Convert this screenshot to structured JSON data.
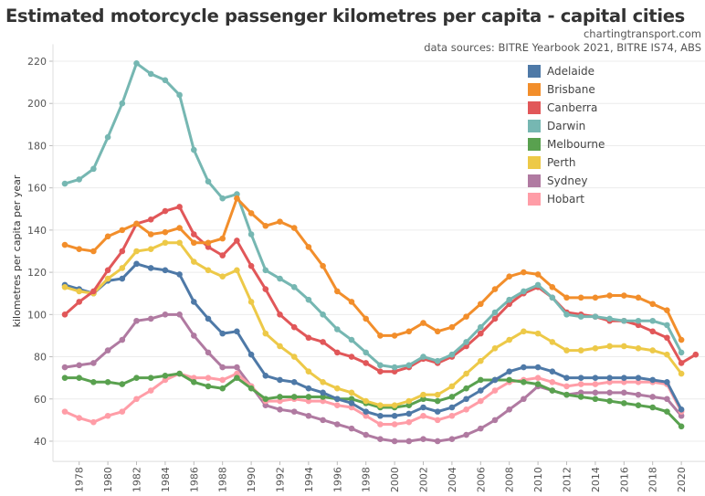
{
  "chart_data": {
    "type": "line",
    "title": "Estimated motorcycle passenger kilometres per capita - capital cities",
    "source_site": "chartingtransport.com",
    "source_note": "data sources: BITRE Yearbook 2021, BITRE IS74, ABS",
    "xlabel": "",
    "ylabel": "kilometres per capita per year",
    "ylim": [
      33,
      228
    ],
    "yticks": [
      40,
      60,
      80,
      100,
      120,
      140,
      160,
      180,
      200,
      220
    ],
    "xticks": [
      1978,
      1980,
      1982,
      1984,
      1986,
      1988,
      1990,
      1992,
      1994,
      1996,
      1998,
      2000,
      2002,
      2004,
      2006,
      2008,
      2010,
      2012,
      2014,
      2016,
      2018,
      2020
    ],
    "grid": true,
    "legend_position": "top-right",
    "x_start": 1977,
    "series": [
      {
        "name": "Adelaide",
        "color": "#4e79a7",
        "values": [
          114,
          112,
          110,
          116,
          117,
          124,
          122,
          121,
          119,
          106,
          98,
          91,
          92,
          81,
          71,
          69,
          68,
          65,
          63,
          60,
          58,
          54,
          52,
          52,
          53,
          56,
          54,
          56,
          60,
          64,
          69,
          73,
          75,
          75,
          73,
          70,
          70,
          70,
          70,
          70,
          70,
          69,
          68,
          55
        ]
      },
      {
        "name": "Brisbane",
        "color": "#f28e2b",
        "values": [
          133,
          131,
          130,
          137,
          140,
          143,
          138,
          139,
          141,
          134,
          134,
          136,
          155,
          148,
          142,
          144,
          141,
          132,
          123,
          111,
          106,
          98,
          90,
          90,
          92,
          96,
          92,
          94,
          99,
          105,
          112,
          118,
          120,
          119,
          113,
          108,
          108,
          108,
          109,
          109,
          108,
          105,
          102,
          88
        ]
      },
      {
        "name": "Canberra",
        "color": "#e15759",
        "values": [
          100,
          106,
          111,
          121,
          130,
          143,
          145,
          149,
          151,
          138,
          132,
          128,
          135,
          123,
          112,
          100,
          94,
          89,
          87,
          82,
          80,
          77,
          73,
          73,
          75,
          79,
          77,
          80,
          85,
          91,
          98,
          105,
          110,
          113,
          108,
          101,
          100,
          99,
          97,
          97,
          95,
          92,
          89,
          77,
          81
        ]
      },
      {
        "name": "Darwin",
        "color": "#76b7b2",
        "values": [
          162,
          164,
          169,
          184,
          200,
          219,
          214,
          211,
          204,
          178,
          163,
          155,
          157,
          138,
          121,
          117,
          113,
          107,
          100,
          93,
          88,
          82,
          76,
          75,
          76,
          80,
          78,
          81,
          87,
          94,
          101,
          107,
          111,
          114,
          108,
          100,
          99,
          99,
          98,
          97,
          97,
          97,
          95,
          82
        ]
      },
      {
        "name": "Melbourne",
        "color": "#59a14f",
        "values": [
          70,
          70,
          68,
          68,
          67,
          70,
          70,
          71,
          72,
          68,
          66,
          65,
          70,
          65,
          60,
          61,
          61,
          61,
          61,
          60,
          60,
          58,
          56,
          56,
          57,
          60,
          59,
          61,
          65,
          69,
          69,
          69,
          68,
          67,
          64,
          62,
          61,
          60,
          59,
          58,
          57,
          56,
          54,
          47
        ]
      },
      {
        "name": "Perth",
        "color": "#edc948",
        "values": [
          113,
          111,
          110,
          117,
          122,
          130,
          131,
          134,
          134,
          125,
          121,
          118,
          121,
          106,
          91,
          85,
          80,
          73,
          68,
          65,
          63,
          59,
          57,
          57,
          59,
          62,
          62,
          66,
          72,
          78,
          84,
          88,
          92,
          91,
          87,
          83,
          83,
          84,
          85,
          85,
          84,
          83,
          81,
          72
        ]
      },
      {
        "name": "Sydney",
        "color": "#b07aa1",
        "values": [
          75,
          76,
          77,
          83,
          88,
          97,
          98,
          100,
          100,
          90,
          82,
          75,
          75,
          66,
          57,
          55,
          54,
          52,
          50,
          48,
          46,
          43,
          41,
          40,
          40,
          41,
          40,
          41,
          43,
          46,
          50,
          55,
          60,
          66,
          64,
          62,
          63,
          63,
          63,
          63,
          62,
          61,
          60,
          52
        ]
      },
      {
        "name": "Hobart",
        "color": "#ff9da7",
        "values": [
          54,
          51,
          49,
          52,
          54,
          60,
          64,
          69,
          72,
          70,
          70,
          69,
          72,
          66,
          59,
          59,
          60,
          59,
          59,
          57,
          56,
          52,
          48,
          48,
          49,
          52,
          50,
          52,
          55,
          59,
          64,
          68,
          69,
          70,
          68,
          66,
          67,
          67,
          68,
          68,
          68,
          68,
          67,
          54
        ]
      }
    ]
  }
}
